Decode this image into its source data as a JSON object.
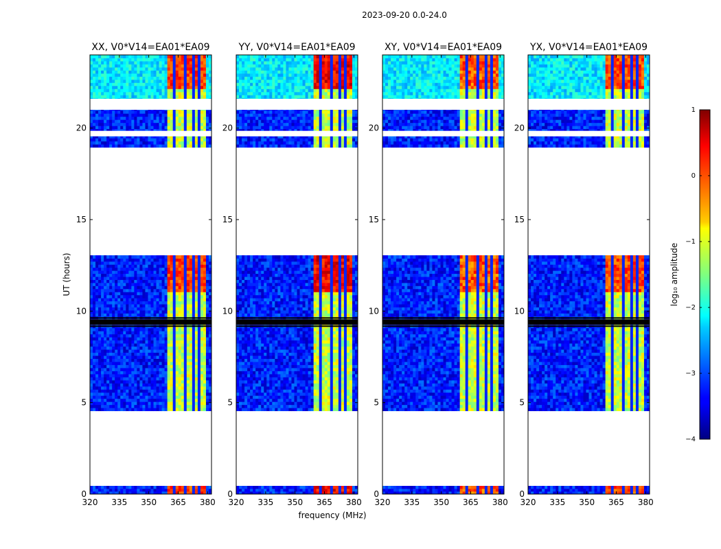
{
  "figure": {
    "suptitle": "2023-09-20 0.0-24.0",
    "colors": {
      "background": "#ffffff",
      "axes": "#000000",
      "blank": "#ffffff"
    }
  },
  "chart_data": {
    "type": "heatmap",
    "x_range": [
      320,
      382
    ],
    "y_range": [
      0,
      24
    ],
    "xlabel": "frequency (MHz)",
    "ylabel": "UT (hours)",
    "xticks": [
      320,
      335,
      350,
      365,
      380
    ],
    "yticks": [
      0,
      5,
      10,
      15,
      20
    ],
    "panels": [
      {
        "title": "XX, V0*V14=EA01*EA09",
        "rfi_bright": [
          -0.3,
          0.5
        ]
      },
      {
        "title": "YY, V0*V14=EA01*EA09",
        "rfi_bright": [
          0.0,
          0.8
        ]
      },
      {
        "title": "XY, V0*V14=EA01*EA09",
        "rfi_bright": [
          -0.5,
          0.4
        ]
      },
      {
        "title": "YX, V0*V14=EA01*EA09",
        "rfi_bright": [
          -0.4,
          0.4
        ]
      }
    ],
    "data_intervals_hours": [
      [
        0.0,
        0.45
      ],
      [
        4.55,
        9.25
      ],
      [
        9.55,
        13.05
      ],
      [
        18.95,
        24.0
      ]
    ],
    "blank_gaps_hours": [
      [
        9.25,
        9.55
      ],
      [
        21.0,
        21.6
      ],
      [
        19.55,
        19.85
      ]
    ],
    "rfi_band_mhz": [
      359.5,
      379.0
    ],
    "rfi_notches_mhz": [
      363.5,
      368.5,
      373.0,
      376.0
    ],
    "colorbar": {
      "label": "log₁₀ amplitude",
      "range": [
        -4,
        1
      ],
      "ticks": [
        1,
        0,
        -1,
        -2,
        -3,
        -4
      ],
      "tick_labels": [
        "1",
        "0",
        "−1",
        "−2",
        "−3",
        "−4"
      ]
    }
  }
}
